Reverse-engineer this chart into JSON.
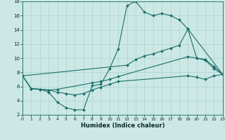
{
  "bg_color": "#cce8e4",
  "line_color": "#1a6e6a",
  "grid_color": "#aad4d0",
  "xlabel": "Humidex (Indice chaleur)",
  "xlim": [
    0,
    23
  ],
  "ylim": [
    2,
    18
  ],
  "xticks": [
    0,
    1,
    2,
    3,
    4,
    5,
    6,
    7,
    8,
    9,
    10,
    11,
    12,
    13,
    14,
    15,
    16,
    17,
    18,
    19,
    20,
    21,
    22,
    23
  ],
  "yticks": [
    2,
    4,
    6,
    8,
    10,
    12,
    14,
    16,
    18
  ],
  "line1_x": [
    0,
    1,
    2,
    3,
    4,
    5,
    6,
    7,
    8,
    9,
    10,
    11,
    12,
    13,
    14,
    15,
    16,
    17,
    18,
    19,
    20,
    21,
    22,
    23
  ],
  "line1_y": [
    7.5,
    5.7,
    5.6,
    5.2,
    3.8,
    3.0,
    2.7,
    2.7,
    6.1,
    6.3,
    8.5,
    11.3,
    17.4,
    18.0,
    16.5,
    16.0,
    16.3,
    16.0,
    15.4,
    14.1,
    10.0,
    9.7,
    8.5,
    7.7
  ],
  "line2_x": [
    0,
    12,
    13,
    14,
    15,
    16,
    17,
    18,
    19,
    23
  ],
  "line2_y": [
    7.5,
    9.0,
    9.8,
    10.3,
    10.6,
    11.0,
    11.4,
    11.8,
    14.1,
    7.7
  ],
  "line3_x": [
    0,
    1,
    2,
    3,
    4,
    8,
    9,
    10,
    11,
    19,
    20,
    21,
    22,
    23
  ],
  "line3_y": [
    7.5,
    5.7,
    5.6,
    5.5,
    5.6,
    6.5,
    6.7,
    7.0,
    7.4,
    10.2,
    10.0,
    9.8,
    8.8,
    7.7
  ],
  "line4_x": [
    0,
    1,
    2,
    3,
    4,
    5,
    6,
    7,
    8,
    9,
    10,
    11,
    19,
    20,
    21,
    22,
    23
  ],
  "line4_y": [
    7.5,
    5.7,
    5.6,
    5.5,
    5.2,
    5.0,
    4.8,
    5.0,
    5.5,
    5.9,
    6.3,
    6.7,
    7.5,
    7.3,
    7.0,
    7.5,
    7.7
  ]
}
